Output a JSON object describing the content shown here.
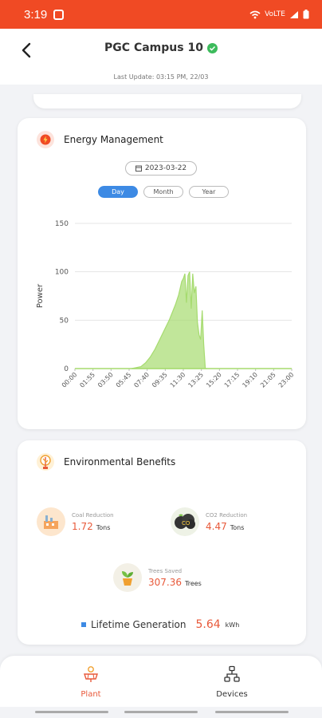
{
  "status": {
    "time": "3:19",
    "network": "VoLTE"
  },
  "header": {
    "title": "PGC Campus 10",
    "last_update": "Last Update: 03:15 PM, 22/03"
  },
  "energy": {
    "title": "Energy Management",
    "date": "2023-03-22",
    "tabs": [
      {
        "label": "Day",
        "active": true
      },
      {
        "label": "Month",
        "active": false
      },
      {
        "label": "Year",
        "active": false
      }
    ]
  },
  "chart_data": {
    "type": "area",
    "ylabel": "Power",
    "ylim": [
      0,
      150
    ],
    "yticks": [
      0,
      50,
      100,
      150
    ],
    "xticks": [
      "00:00",
      "01:55",
      "03:50",
      "05:45",
      "07:40",
      "09:35",
      "11:30",
      "13:25",
      "15:20",
      "17:15",
      "19:10",
      "21:05",
      "23:00"
    ],
    "x": [
      "06:00",
      "06:30",
      "07:00",
      "07:30",
      "08:00",
      "08:30",
      "09:00",
      "09:30",
      "10:00",
      "10:20",
      "10:40",
      "11:00",
      "11:10",
      "11:20",
      "11:30",
      "11:40",
      "11:50",
      "12:00",
      "12:10",
      "12:20",
      "12:30",
      "12:40",
      "12:50",
      "13:00",
      "13:10",
      "13:20",
      "13:30",
      "13:40",
      "13:50",
      "14:00"
    ],
    "values": [
      0,
      1,
      2,
      6,
      12,
      20,
      30,
      40,
      50,
      58,
      66,
      76,
      83,
      90,
      93,
      98,
      68,
      96,
      100,
      62,
      98,
      78,
      85,
      48,
      35,
      30,
      60,
      25,
      0,
      0
    ],
    "color": "#a6db6f",
    "grid": true
  },
  "environment": {
    "title": "Environmental Benefits",
    "coal": {
      "label": "Coal Reduction",
      "value": "1.72",
      "unit": "Tons"
    },
    "co2": {
      "label": "CO2 Reduction",
      "value": "4.47",
      "unit": "Tons"
    },
    "trees": {
      "label": "Trees Saved",
      "value": "307.36",
      "unit": "Trees"
    },
    "lifetime": {
      "label": "Lifetime Generation",
      "value": "5.64",
      "unit": "kWh"
    }
  },
  "nav": {
    "plant": "Plant",
    "devices": "Devices"
  },
  "colors": {
    "accent": "#f04a24",
    "orange_text": "#e8593a",
    "blue": "#3d8ae4",
    "chart_fill": "#a6db6f"
  }
}
